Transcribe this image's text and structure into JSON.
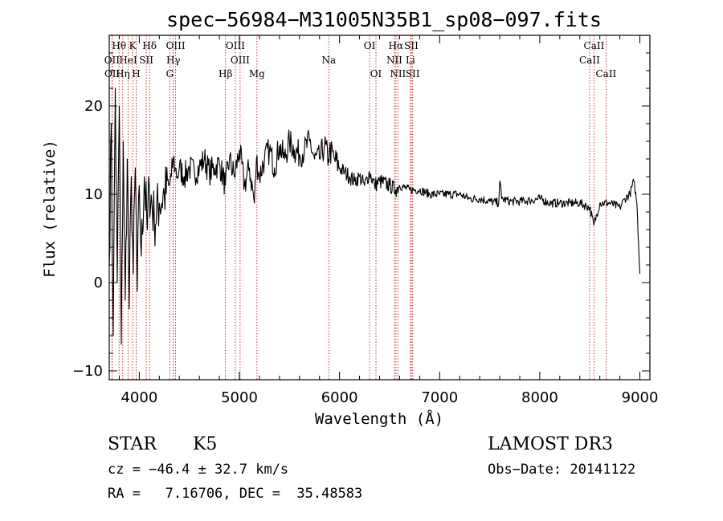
{
  "chart_data": {
    "type": "line",
    "title": "spec−56984−M31005N35B1_sp08−097.fits",
    "xlabel": "Wavelength (Å)",
    "ylabel": "Flux (relative)",
    "xlim": [
      3700,
      9100
    ],
    "ylim": [
      -11,
      28
    ],
    "xticks": [
      4000,
      5000,
      6000,
      7000,
      8000,
      9000
    ],
    "yticks": [
      -10,
      0,
      10,
      20
    ],
    "ytick_labels": [
      "−10",
      "0",
      "10",
      "20"
    ],
    "series": [
      {
        "name": "flux",
        "x": [
          3700,
          3720,
          3740,
          3760,
          3780,
          3800,
          3820,
          3840,
          3860,
          3880,
          3900,
          3920,
          3940,
          3960,
          3980,
          4000,
          4020,
          4050,
          4080,
          4100,
          4150,
          4200,
          4250,
          4300,
          4320,
          4340,
          4360,
          4380,
          4400,
          4450,
          4500,
          4550,
          4600,
          4650,
          4700,
          4750,
          4800,
          4860,
          4900,
          4950,
          5000,
          5050,
          5100,
          5150,
          5170,
          5200,
          5250,
          5300,
          5350,
          5400,
          5450,
          5500,
          5550,
          5600,
          5650,
          5700,
          5750,
          5800,
          5850,
          5890,
          5900,
          5950,
          6000,
          6050,
          6100,
          6150,
          6200,
          6250,
          6300,
          6350,
          6400,
          6500,
          6560,
          6600,
          6700,
          6800,
          6900,
          7000,
          7100,
          7200,
          7300,
          7400,
          7500,
          7590,
          7600,
          7620,
          7700,
          7800,
          7900,
          8000,
          8100,
          8200,
          8300,
          8400,
          8500,
          8540,
          8600,
          8700,
          8800,
          8850,
          8900,
          8940,
          8970,
          9000
        ],
        "y": [
          2,
          18,
          -6,
          22,
          0,
          20,
          -7,
          16,
          -2,
          14,
          -3,
          12,
          1,
          13,
          -1,
          11,
          3,
          12,
          6,
          11,
          7,
          9,
          10,
          11,
          12,
          14,
          13,
          12,
          13,
          12,
          13,
          12.5,
          13,
          14,
          12.5,
          13,
          13.5,
          11,
          14,
          12,
          15,
          11,
          13,
          9,
          14,
          12,
          14,
          15,
          13,
          15.5,
          14,
          16,
          15,
          14.5,
          15,
          16,
          14,
          14,
          15.5,
          14,
          15,
          14,
          13,
          12.5,
          12,
          11.5,
          12,
          11,
          12.5,
          11,
          11.5,
          11,
          10.5,
          11,
          10.5,
          10.5,
          10,
          10,
          10,
          10,
          9.5,
          9.5,
          9.2,
          9,
          11.5,
          9.5,
          9.2,
          9.2,
          9.3,
          9.5,
          9,
          9,
          9,
          9,
          8.5,
          6.5,
          9,
          9,
          8.5,
          9.5,
          10,
          11.5,
          9,
          1
        ]
      }
    ],
    "line_labels": [
      {
        "text": "Hθ",
        "w": 3798,
        "row": 1
      },
      {
        "text": "K",
        "w": 3934,
        "row": 1
      },
      {
        "text": "Hδ",
        "w": 4102,
        "row": 1
      },
      {
        "text": "OIII",
        "w": 4363,
        "row": 1
      },
      {
        "text": "OIII",
        "w": 4959,
        "row": 1
      },
      {
        "text": "OI",
        "w": 6300,
        "row": 1
      },
      {
        "text": "Hα",
        "w": 6563,
        "row": 1
      },
      {
        "text": "SII",
        "w": 6717,
        "row": 1
      },
      {
        "text": "CaII",
        "w": 8542,
        "row": 1
      },
      {
        "text": "OII",
        "w": 3727,
        "row": 2
      },
      {
        "text": "HeI",
        "w": 3889,
        "row": 2
      },
      {
        "text": "SII",
        "w": 4070,
        "row": 2
      },
      {
        "text": "Hγ",
        "w": 4340,
        "row": 2
      },
      {
        "text": "OIII",
        "w": 5007,
        "row": 2
      },
      {
        "text": "Na",
        "w": 5893,
        "row": 2
      },
      {
        "text": "NII",
        "w": 6548,
        "row": 2
      },
      {
        "text": "Li",
        "w": 6708,
        "row": 2
      },
      {
        "text": "CaII",
        "w": 8498,
        "row": 2
      },
      {
        "text": "OII",
        "w": 3729,
        "row": 3
      },
      {
        "text": "Hη",
        "w": 3835,
        "row": 3
      },
      {
        "text": "H",
        "w": 3969,
        "row": 3
      },
      {
        "text": "G",
        "w": 4305,
        "row": 3
      },
      {
        "text": "Hβ",
        "w": 4861,
        "row": 3
      },
      {
        "text": "Mg",
        "w": 5175,
        "row": 3
      },
      {
        "text": "OI",
        "w": 6364,
        "row": 3
      },
      {
        "text": "NII",
        "w": 6583,
        "row": 3
      },
      {
        "text": "SII",
        "w": 6731,
        "row": 3
      },
      {
        "text": "CaII",
        "w": 8662,
        "row": 3
      }
    ],
    "marker_lines": [
      3727,
      3729,
      3798,
      3835,
      3889,
      3934,
      3969,
      4070,
      4102,
      4305,
      4340,
      4363,
      4861,
      4959,
      5007,
      5175,
      5893,
      6300,
      6364,
      6548,
      6563,
      6583,
      6708,
      6717,
      6731,
      8498,
      8542,
      8662
    ],
    "colors": {
      "spectrum": "#000000",
      "markers": "#c00000",
      "axes": "#000000"
    }
  },
  "info": {
    "class": "STAR",
    "subclass": "K5",
    "survey": "LAMOST DR3",
    "cz": "cz = −46.4 ± 32.7 km/s",
    "obs_date": "Obs−Date: 20141122",
    "coords": "RA =   7.16706, DEC =  35.48583"
  }
}
